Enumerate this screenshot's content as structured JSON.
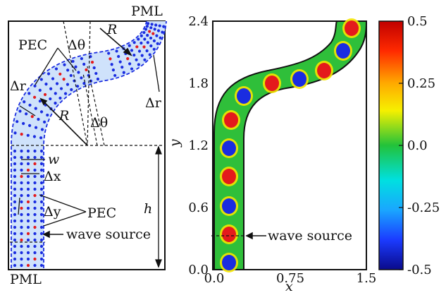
{
  "left_panel": {
    "pml_top": "PML",
    "pml_bottom": "PML",
    "pec_top": "PEC",
    "pec_bottom": "PEC",
    "R_top": "R",
    "R_bottom": "R",
    "delta_theta_top": "Δθ",
    "delta_theta_bottom": "Δθ",
    "delta_r_left": "Δr",
    "delta_r_right": "Δr",
    "w": "w",
    "delta_x": "Δx",
    "delta_y": "Δy",
    "h": "h",
    "wave_source": "wave source"
  },
  "right_panel": {
    "wave_source": "wave source",
    "xlabel": "x",
    "ylabel": "y",
    "x_ticks": [
      "0.0",
      "0.75",
      "1.5"
    ],
    "y_ticks": [
      "0.0",
      "0.6",
      "1.2",
      "1.8",
      "2.4"
    ],
    "colorbar_ticks": [
      "0.5",
      "0.25",
      "0.0",
      "-0.25",
      "-0.5"
    ],
    "colors": {
      "high": "#e41a1c",
      "low": "#1a2ce0",
      "mid": "#22b34a",
      "outline": "#111111"
    }
  }
}
